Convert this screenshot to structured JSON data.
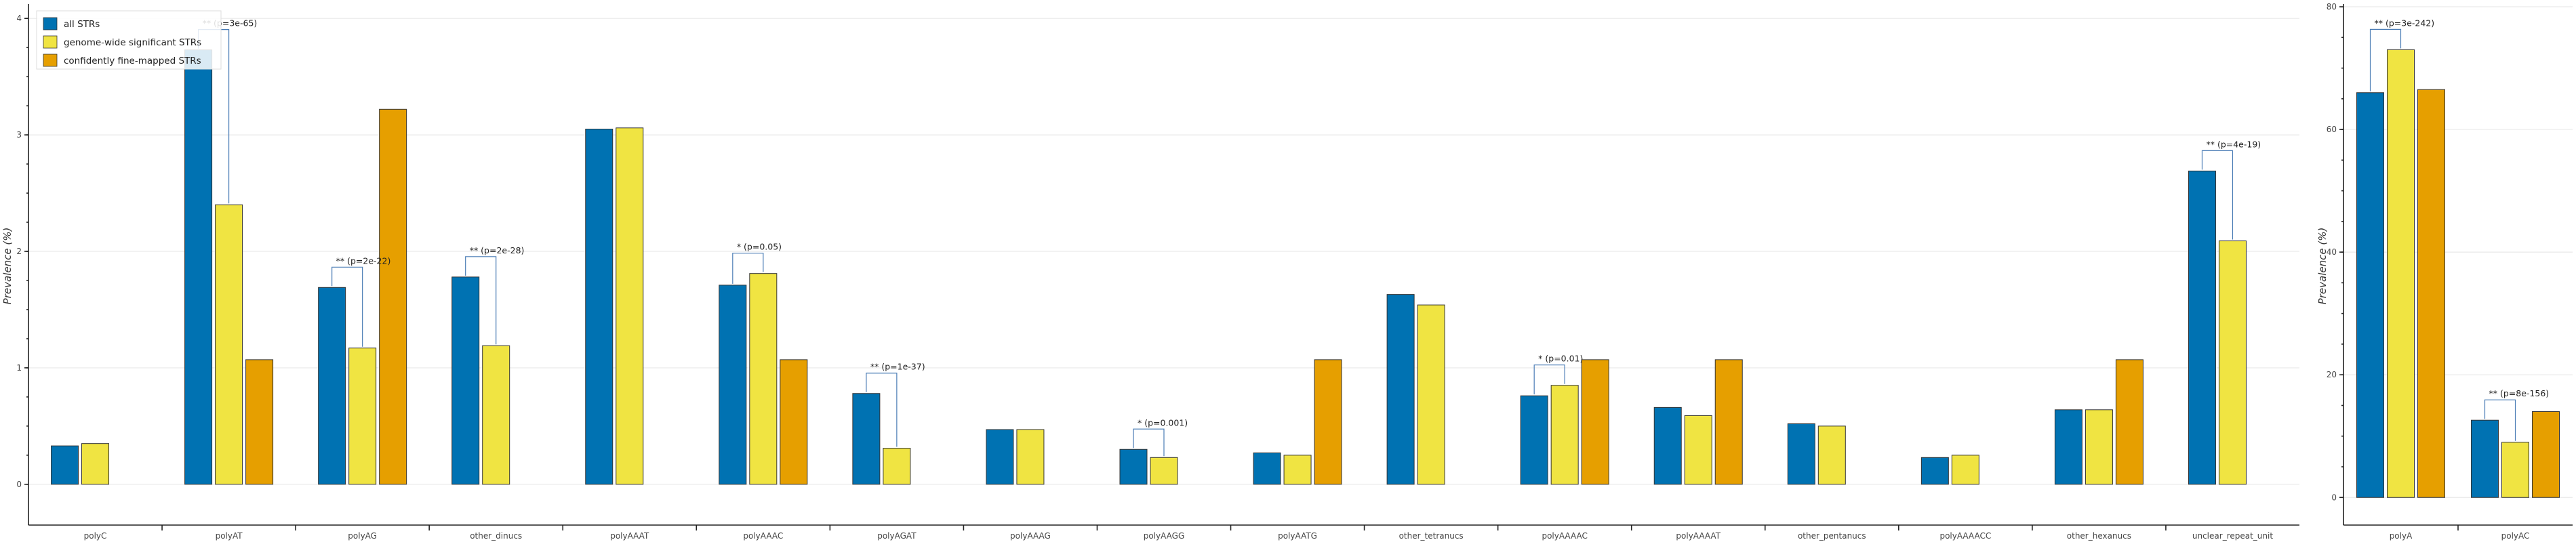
{
  "chart_data": [
    {
      "type": "bar",
      "title": "",
      "xlabel": "",
      "ylabel": "Prevalence (%)",
      "ylim": [
        -0.35,
        4.1
      ],
      "yticks": [
        0,
        1,
        2,
        3,
        4
      ],
      "ytick_labels": [
        "0",
        "1",
        "2",
        "3",
        "4"
      ],
      "grid": true,
      "legend_position": "top-left",
      "categories": [
        "polyC",
        "polyAT",
        "polyAG",
        "other_dinucs",
        "polyAAAT",
        "polyAAAC",
        "polyAGAT",
        "polyAAAG",
        "polyAAGG",
        "polyAATG",
        "other_tetranucs",
        "polyAAAAC",
        "polyAAAAT",
        "other_pentanucs",
        "polyAAAACC",
        "other_hexanucs",
        "unclear_repeat_unit"
      ],
      "series": [
        {
          "name": "all STRs",
          "color": "#0072b2",
          "values": [
            0.33,
            3.73,
            1.69,
            1.78,
            3.05,
            1.71,
            0.78,
            0.47,
            0.3,
            0.27,
            1.63,
            0.76,
            0.66,
            0.52,
            0.23,
            0.64,
            2.69
          ]
        },
        {
          "name": "genome-wide significant STRs",
          "color": "#f0e442",
          "values": [
            0.35,
            2.4,
            1.17,
            1.19,
            3.06,
            1.81,
            0.31,
            0.47,
            0.23,
            0.25,
            1.54,
            0.85,
            0.59,
            0.5,
            0.25,
            0.64,
            2.09
          ]
        },
        {
          "name": "confidently fine-mapped STRs",
          "color": "#e69f00",
          "values": [
            null,
            1.07,
            3.22,
            null,
            null,
            1.07,
            null,
            null,
            null,
            1.07,
            null,
            1.07,
            1.07,
            null,
            null,
            1.07,
            null
          ]
        }
      ],
      "annotations": [
        {
          "category": "polyAT",
          "text": "** (p=3e-65)"
        },
        {
          "category": "polyAG",
          "text": "** (p=2e-22)"
        },
        {
          "category": "other_dinucs",
          "text": "** (p=2e-28)"
        },
        {
          "category": "polyAAAC",
          "text": "* (p=0.05)"
        },
        {
          "category": "polyAGAT",
          "text": "** (p=1e-37)"
        },
        {
          "category": "polyAAGG",
          "text": "* (p=0.001)"
        },
        {
          "category": "polyAAAAC",
          "text": "* (p=0.01)"
        },
        {
          "category": "unclear_repeat_unit",
          "text": "** (p=4e-19)"
        }
      ]
    },
    {
      "type": "bar",
      "title": "",
      "xlabel": "",
      "ylabel": "Prevalence (%)",
      "ylim": [
        -4.5,
        80
      ],
      "yticks": [
        0,
        20,
        40,
        60,
        80
      ],
      "ytick_labels": [
        "0",
        "20",
        "40",
        "60",
        "80"
      ],
      "grid": true,
      "categories": [
        "polyA",
        "polyAC"
      ],
      "series": [
        {
          "name": "all STRs",
          "color": "#0072b2",
          "values": [
            66,
            12.6
          ]
        },
        {
          "name": "genome-wide significant STRs",
          "color": "#f0e442",
          "values": [
            73,
            9
          ]
        },
        {
          "name": "confidently fine-mapped STRs",
          "color": "#e69f00",
          "values": [
            66.5,
            14
          ]
        }
      ],
      "annotations": [
        {
          "category": "polyA",
          "text": "** (p=3e-242)"
        },
        {
          "category": "polyAC",
          "text": "** (p=8e-156)"
        }
      ]
    }
  ]
}
